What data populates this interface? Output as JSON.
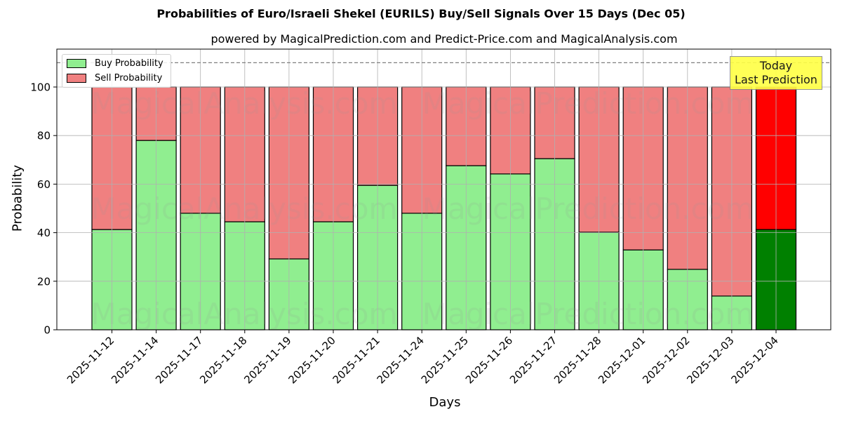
{
  "header": {
    "title": "Probabilities of Euro/Israeli Shekel (EURILS) Buy/Sell Signals Over 15 Days (Dec 05)",
    "subtitle": "powered by MagicalPrediction.com and Predict-Price.com and MagicalAnalysis.com"
  },
  "legend": {
    "buy_label": "Buy Probability",
    "sell_label": "Sell Probability"
  },
  "annotation": {
    "line1": "Today",
    "line2": "Last Prediction"
  },
  "watermarks": [
    "MagicalAnalysis.com",
    "MagicalPrediction.com"
  ],
  "colors": {
    "buy": "#90ee90",
    "sell": "#f08080",
    "today_buy": "#008000",
    "today_sell": "#ff0000",
    "annotation_bg": "#ffff44"
  },
  "chart_data": {
    "type": "bar",
    "stacked": true,
    "title": "Probabilities of Euro/Israeli Shekel (EURILS) Buy/Sell Signals Over 15 Days (Dec 05)",
    "subtitle": "powered by MagicalPrediction.com and Predict-Price.com and MagicalAnalysis.com",
    "xlabel": "Days",
    "ylabel": "Probability",
    "ylim": [
      0,
      115
    ],
    "yticks": [
      0,
      20,
      40,
      60,
      80,
      100
    ],
    "reference_line": 110,
    "grid": true,
    "legend_position": "upper left",
    "categories": [
      "2025-11-12",
      "2025-11-14",
      "2025-11-17",
      "2025-11-18",
      "2025-11-19",
      "2025-11-20",
      "2025-11-21",
      "2025-11-24",
      "2025-11-25",
      "2025-11-26",
      "2025-11-27",
      "2025-11-28",
      "2025-12-01",
      "2025-12-02",
      "2025-12-03",
      "2025-12-04"
    ],
    "series": [
      {
        "name": "Buy Probability",
        "values": [
          41.3,
          78.0,
          48.0,
          44.5,
          29.2,
          44.5,
          59.5,
          48.0,
          67.6,
          64.2,
          70.5,
          40.2,
          32.9,
          24.9,
          13.9,
          41.3
        ]
      },
      {
        "name": "Sell Probability",
        "values": [
          58.7,
          22.0,
          52.0,
          55.5,
          70.8,
          55.5,
          40.5,
          52.0,
          32.4,
          35.8,
          29.5,
          59.8,
          67.1,
          75.1,
          86.1,
          58.7
        ]
      }
    ],
    "annotations": [
      {
        "text": "Today\nLast Prediction",
        "x": "2025-12-04"
      }
    ]
  }
}
